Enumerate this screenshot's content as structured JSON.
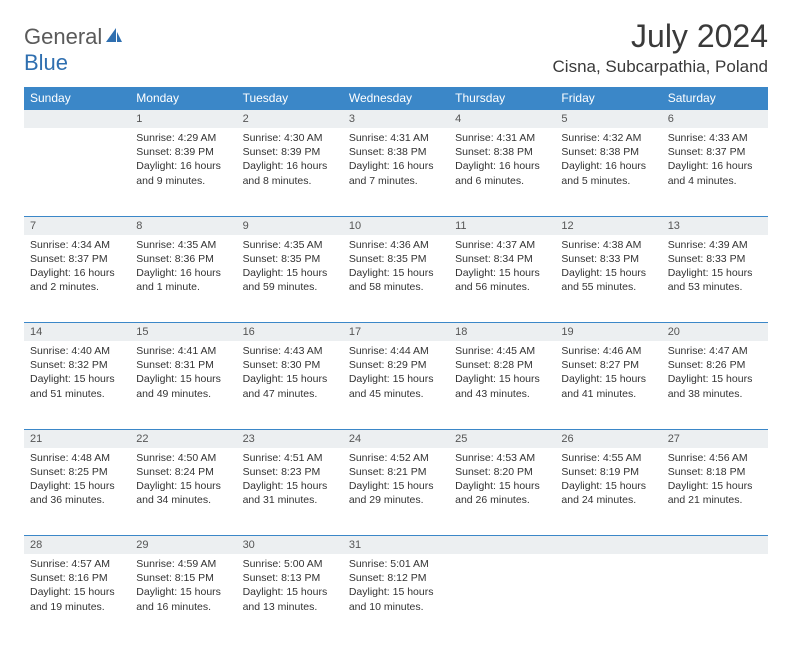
{
  "header": {
    "logo_part1": "General",
    "logo_part2": "Blue",
    "title": "July 2024",
    "location": "Cisna, Subcarpathia, Poland"
  },
  "colors": {
    "header_bg": "#3b87c8",
    "header_text": "#ffffff",
    "daynum_bg": "#eceff1",
    "daynum_text": "#555555",
    "border": "#3b87c8",
    "logo_gray": "#5a5a5a",
    "logo_blue": "#2f6fb0"
  },
  "weekdays": [
    "Sunday",
    "Monday",
    "Tuesday",
    "Wednesday",
    "Thursday",
    "Friday",
    "Saturday"
  ],
  "weeks": [
    [
      null,
      {
        "n": "1",
        "sr": "Sunrise: 4:29 AM",
        "ss": "Sunset: 8:39 PM",
        "d1": "Daylight: 16 hours",
        "d2": "and 9 minutes."
      },
      {
        "n": "2",
        "sr": "Sunrise: 4:30 AM",
        "ss": "Sunset: 8:39 PM",
        "d1": "Daylight: 16 hours",
        "d2": "and 8 minutes."
      },
      {
        "n": "3",
        "sr": "Sunrise: 4:31 AM",
        "ss": "Sunset: 8:38 PM",
        "d1": "Daylight: 16 hours",
        "d2": "and 7 minutes."
      },
      {
        "n": "4",
        "sr": "Sunrise: 4:31 AM",
        "ss": "Sunset: 8:38 PM",
        "d1": "Daylight: 16 hours",
        "d2": "and 6 minutes."
      },
      {
        "n": "5",
        "sr": "Sunrise: 4:32 AM",
        "ss": "Sunset: 8:38 PM",
        "d1": "Daylight: 16 hours",
        "d2": "and 5 minutes."
      },
      {
        "n": "6",
        "sr": "Sunrise: 4:33 AM",
        "ss": "Sunset: 8:37 PM",
        "d1": "Daylight: 16 hours",
        "d2": "and 4 minutes."
      }
    ],
    [
      {
        "n": "7",
        "sr": "Sunrise: 4:34 AM",
        "ss": "Sunset: 8:37 PM",
        "d1": "Daylight: 16 hours",
        "d2": "and 2 minutes."
      },
      {
        "n": "8",
        "sr": "Sunrise: 4:35 AM",
        "ss": "Sunset: 8:36 PM",
        "d1": "Daylight: 16 hours",
        "d2": "and 1 minute."
      },
      {
        "n": "9",
        "sr": "Sunrise: 4:35 AM",
        "ss": "Sunset: 8:35 PM",
        "d1": "Daylight: 15 hours",
        "d2": "and 59 minutes."
      },
      {
        "n": "10",
        "sr": "Sunrise: 4:36 AM",
        "ss": "Sunset: 8:35 PM",
        "d1": "Daylight: 15 hours",
        "d2": "and 58 minutes."
      },
      {
        "n": "11",
        "sr": "Sunrise: 4:37 AM",
        "ss": "Sunset: 8:34 PM",
        "d1": "Daylight: 15 hours",
        "d2": "and 56 minutes."
      },
      {
        "n": "12",
        "sr": "Sunrise: 4:38 AM",
        "ss": "Sunset: 8:33 PM",
        "d1": "Daylight: 15 hours",
        "d2": "and 55 minutes."
      },
      {
        "n": "13",
        "sr": "Sunrise: 4:39 AM",
        "ss": "Sunset: 8:33 PM",
        "d1": "Daylight: 15 hours",
        "d2": "and 53 minutes."
      }
    ],
    [
      {
        "n": "14",
        "sr": "Sunrise: 4:40 AM",
        "ss": "Sunset: 8:32 PM",
        "d1": "Daylight: 15 hours",
        "d2": "and 51 minutes."
      },
      {
        "n": "15",
        "sr": "Sunrise: 4:41 AM",
        "ss": "Sunset: 8:31 PM",
        "d1": "Daylight: 15 hours",
        "d2": "and 49 minutes."
      },
      {
        "n": "16",
        "sr": "Sunrise: 4:43 AM",
        "ss": "Sunset: 8:30 PM",
        "d1": "Daylight: 15 hours",
        "d2": "and 47 minutes."
      },
      {
        "n": "17",
        "sr": "Sunrise: 4:44 AM",
        "ss": "Sunset: 8:29 PM",
        "d1": "Daylight: 15 hours",
        "d2": "and 45 minutes."
      },
      {
        "n": "18",
        "sr": "Sunrise: 4:45 AM",
        "ss": "Sunset: 8:28 PM",
        "d1": "Daylight: 15 hours",
        "d2": "and 43 minutes."
      },
      {
        "n": "19",
        "sr": "Sunrise: 4:46 AM",
        "ss": "Sunset: 8:27 PM",
        "d1": "Daylight: 15 hours",
        "d2": "and 41 minutes."
      },
      {
        "n": "20",
        "sr": "Sunrise: 4:47 AM",
        "ss": "Sunset: 8:26 PM",
        "d1": "Daylight: 15 hours",
        "d2": "and 38 minutes."
      }
    ],
    [
      {
        "n": "21",
        "sr": "Sunrise: 4:48 AM",
        "ss": "Sunset: 8:25 PM",
        "d1": "Daylight: 15 hours",
        "d2": "and 36 minutes."
      },
      {
        "n": "22",
        "sr": "Sunrise: 4:50 AM",
        "ss": "Sunset: 8:24 PM",
        "d1": "Daylight: 15 hours",
        "d2": "and 34 minutes."
      },
      {
        "n": "23",
        "sr": "Sunrise: 4:51 AM",
        "ss": "Sunset: 8:23 PM",
        "d1": "Daylight: 15 hours",
        "d2": "and 31 minutes."
      },
      {
        "n": "24",
        "sr": "Sunrise: 4:52 AM",
        "ss": "Sunset: 8:21 PM",
        "d1": "Daylight: 15 hours",
        "d2": "and 29 minutes."
      },
      {
        "n": "25",
        "sr": "Sunrise: 4:53 AM",
        "ss": "Sunset: 8:20 PM",
        "d1": "Daylight: 15 hours",
        "d2": "and 26 minutes."
      },
      {
        "n": "26",
        "sr": "Sunrise: 4:55 AM",
        "ss": "Sunset: 8:19 PM",
        "d1": "Daylight: 15 hours",
        "d2": "and 24 minutes."
      },
      {
        "n": "27",
        "sr": "Sunrise: 4:56 AM",
        "ss": "Sunset: 8:18 PM",
        "d1": "Daylight: 15 hours",
        "d2": "and 21 minutes."
      }
    ],
    [
      {
        "n": "28",
        "sr": "Sunrise: 4:57 AM",
        "ss": "Sunset: 8:16 PM",
        "d1": "Daylight: 15 hours",
        "d2": "and 19 minutes."
      },
      {
        "n": "29",
        "sr": "Sunrise: 4:59 AM",
        "ss": "Sunset: 8:15 PM",
        "d1": "Daylight: 15 hours",
        "d2": "and 16 minutes."
      },
      {
        "n": "30",
        "sr": "Sunrise: 5:00 AM",
        "ss": "Sunset: 8:13 PM",
        "d1": "Daylight: 15 hours",
        "d2": "and 13 minutes."
      },
      {
        "n": "31",
        "sr": "Sunrise: 5:01 AM",
        "ss": "Sunset: 8:12 PM",
        "d1": "Daylight: 15 hours",
        "d2": "and 10 minutes."
      },
      null,
      null,
      null
    ]
  ]
}
